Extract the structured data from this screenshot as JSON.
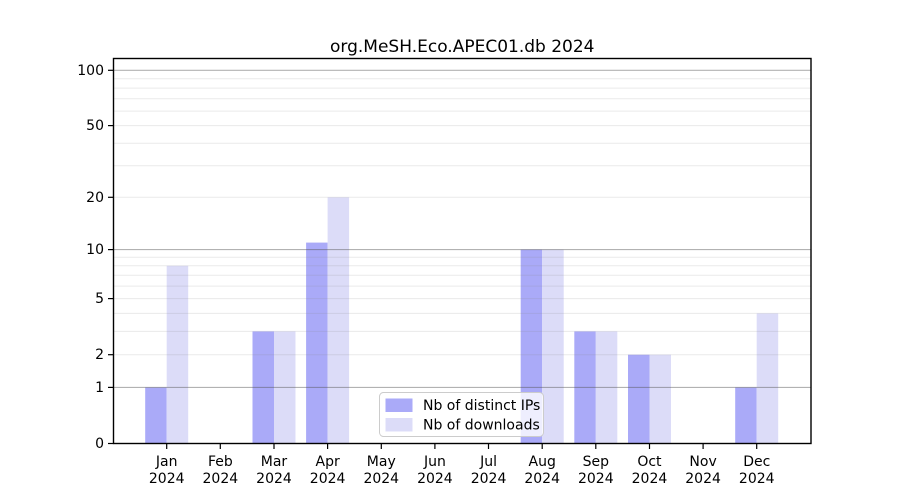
{
  "chart_data": {
    "type": "bar",
    "title": "org.MeSH.Eco.APEC01.db 2024",
    "categories": [
      "Jan",
      "Feb",
      "Mar",
      "Apr",
      "May",
      "Jun",
      "Jul",
      "Aug",
      "Sep",
      "Oct",
      "Nov",
      "Dec"
    ],
    "category_year": "2024",
    "series": [
      {
        "name": "Nb of distinct IPs",
        "key": "distinct-ips",
        "color": "#aaaaf8",
        "values": [
          1,
          0,
          3,
          11,
          0,
          0,
          0,
          10,
          3,
          2,
          0,
          1
        ]
      },
      {
        "name": "Nb of downloads",
        "key": "downloads",
        "color": "#dcdcf8",
        "values": [
          8,
          0,
          3,
          20,
          0,
          0,
          0,
          10,
          3,
          2,
          0,
          4
        ]
      }
    ],
    "y_axis": {
      "scale": "log10(value+1)",
      "tick_values": [
        0,
        1,
        2,
        5,
        10,
        20,
        50,
        100
      ],
      "major_grid_values": [
        1,
        10,
        100
      ],
      "minor_grid_values": [
        2,
        3,
        4,
        5,
        6,
        7,
        8,
        9,
        20,
        30,
        40,
        50,
        60,
        70,
        80,
        90
      ],
      "range_max": 115
    },
    "legend": {
      "entries": [
        "Nb of distinct IPs",
        "Nb of downloads"
      ],
      "position": "bottom-center-inside"
    },
    "grid": true,
    "colors": {
      "spine": "#000000",
      "major_grid": "#b2b2b2",
      "minor_grid": "#e9e9e9",
      "legend_border": "#cccccc",
      "legend_background": "#ffffff"
    }
  }
}
